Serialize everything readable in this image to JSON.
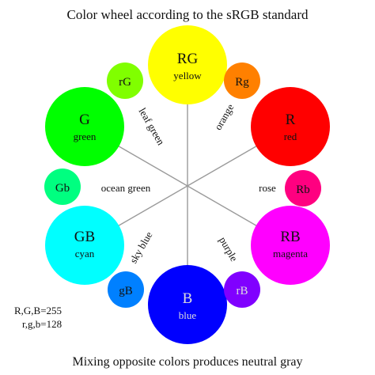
{
  "title": "Color wheel according to the sRGB standard",
  "footer": "Mixing opposite colors produces neutral gray",
  "legend": {
    "line1": "R,G,B=255",
    "line2": "r,g,b=128"
  },
  "big_circles": {
    "yellow": {
      "code": "RG",
      "name": "yellow",
      "fill": "#FFFF00",
      "text_color": "#111111"
    },
    "red": {
      "code": "R",
      "name": "red",
      "fill": "#FF0000",
      "text_color": "#111111"
    },
    "magenta": {
      "code": "RB",
      "name": "magenta",
      "fill": "#FF00FF",
      "text_color": "#111111"
    },
    "blue": {
      "code": "B",
      "name": "blue",
      "fill": "#0000FF",
      "text_color": "#dddddd"
    },
    "cyan": {
      "code": "GB",
      "name": "cyan",
      "fill": "#00FFFF",
      "text_color": "#111111"
    },
    "green": {
      "code": "G",
      "name": "green",
      "fill": "#00FF00",
      "text_color": "#111111"
    }
  },
  "small_circles": {
    "orange": {
      "code": "Rg",
      "label": "orange",
      "fill": "#FF8000",
      "text_color": "#111111"
    },
    "rose": {
      "code": "Rb",
      "label": "rose",
      "fill": "#FF0080",
      "text_color": "#111111"
    },
    "purple": {
      "code": "rB",
      "label": "purple",
      "fill": "#8000FF",
      "text_color": "#dddddd"
    },
    "sky_blue": {
      "code": "gB",
      "label": "sky blue",
      "fill": "#0080FF",
      "text_color": "#111111"
    },
    "ocean_green": {
      "code": "Gb",
      "label": "ocean green",
      "fill": "#00FF80",
      "text_color": "#111111"
    },
    "leaf_green": {
      "code": "rG",
      "label": "leaf green",
      "fill": "#80FF00",
      "text_color": "#111111"
    }
  },
  "line_color": "#9a9a9a"
}
